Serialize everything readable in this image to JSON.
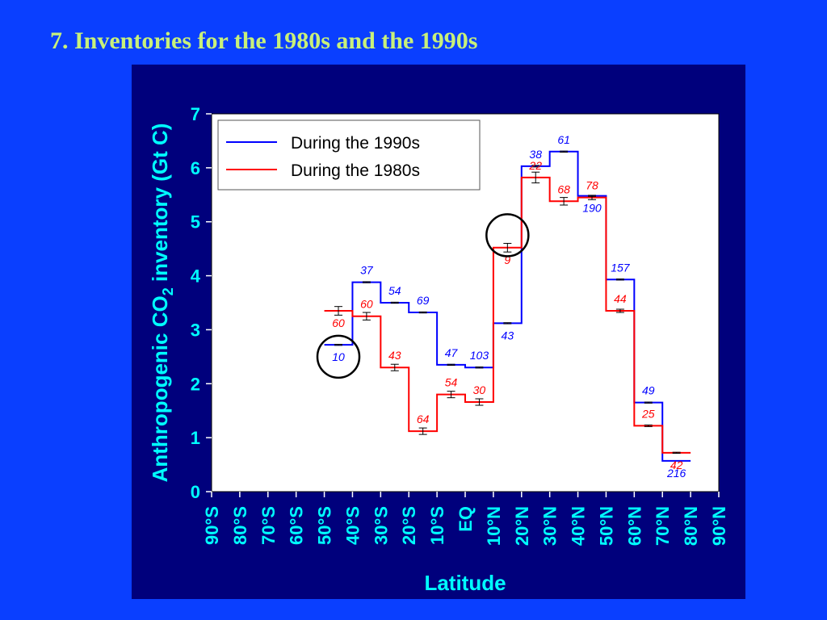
{
  "slide_title": "7. Inventories for the 1980s and the 1990s",
  "colors": {
    "background": "#0a3fff",
    "panel": "#00007c",
    "plot_bg": "#ffffff",
    "axis_text": "#00ffff",
    "title": "#c8f07a",
    "series_1990s": "#0000ff",
    "series_1980s": "#ff0000",
    "highlight_circle": "#000000"
  },
  "chart_data": {
    "type": "line",
    "step": true,
    "title": "",
    "xlabel": "Latitude",
    "ylabel_parts": [
      "Anthropogenic CO",
      "2",
      " inventory (Gt C)"
    ],
    "x_tick_labels": [
      "90°S",
      "80°S",
      "70°S",
      "60°S",
      "50°S",
      "40°S",
      "30°S",
      "20°S",
      "10°S",
      "EQ",
      "10°N",
      "20°N",
      "30°N",
      "40°N",
      "50°N",
      "60°N",
      "70°N",
      "80°N",
      "90°N"
    ],
    "x_range": [
      -90,
      90
    ],
    "ylim": [
      0,
      7
    ],
    "y_ticks": [
      0,
      1,
      2,
      3,
      4,
      5,
      6,
      7
    ],
    "grid": false,
    "legend_position": "top-left",
    "series": [
      {
        "name": "During the 1990s",
        "color": "#0000ff",
        "segments": [
          {
            "x0": -50,
            "x1": -40,
            "y": 2.72,
            "label": "10"
          },
          {
            "x0": -40,
            "x1": -30,
            "y": 3.88,
            "label": "37"
          },
          {
            "x0": -30,
            "x1": -20,
            "y": 3.5,
            "label": "54"
          },
          {
            "x0": -20,
            "x1": -10,
            "y": 3.32,
            "label": "69"
          },
          {
            "x0": -10,
            "x1": 0,
            "y": 2.35,
            "label": "47"
          },
          {
            "x0": 0,
            "x1": 10,
            "y": 2.3,
            "label": "103"
          },
          {
            "x0": 10,
            "x1": 20,
            "y": 3.12,
            "label": "43"
          },
          {
            "x0": 20,
            "x1": 30,
            "y": 6.03,
            "label": "38"
          },
          {
            "x0": 30,
            "x1": 40,
            "y": 6.3,
            "label": "61"
          },
          {
            "x0": 40,
            "x1": 50,
            "y": 5.48,
            "label": "190"
          },
          {
            "x0": 50,
            "x1": 60,
            "y": 3.93,
            "label": "157"
          },
          {
            "x0": 60,
            "x1": 70,
            "y": 1.65,
            "label": "49"
          },
          {
            "x0": 70,
            "x1": 80,
            "y": 0.57,
            "label": "216"
          }
        ]
      },
      {
        "name": "During the 1980s",
        "color": "#ff0000",
        "segments": [
          {
            "x0": -50,
            "x1": -40,
            "y": 3.35,
            "label": "60"
          },
          {
            "x0": -40,
            "x1": -30,
            "y": 3.25,
            "label": "60"
          },
          {
            "x0": -30,
            "x1": -20,
            "y": 2.3,
            "label": "43"
          },
          {
            "x0": -20,
            "x1": -10,
            "y": 1.12,
            "label": "64"
          },
          {
            "x0": -10,
            "x1": 0,
            "y": 1.8,
            "label": "54"
          },
          {
            "x0": 0,
            "x1": 10,
            "y": 1.66,
            "label": "30"
          },
          {
            "x0": 10,
            "x1": 20,
            "y": 4.52,
            "label": "9"
          },
          {
            "x0": 20,
            "x1": 30,
            "y": 5.82,
            "label": "22"
          },
          {
            "x0": 30,
            "x1": 40,
            "y": 5.38,
            "label": "68"
          },
          {
            "x0": 40,
            "x1": 50,
            "y": 5.45,
            "label": "78"
          },
          {
            "x0": 50,
            "x1": 60,
            "y": 3.35,
            "label": "44"
          },
          {
            "x0": 60,
            "x1": 70,
            "y": 1.22,
            "label": "25"
          },
          {
            "x0": 70,
            "x1": 80,
            "y": 0.72,
            "label": "42"
          }
        ]
      }
    ],
    "error_bars": [
      {
        "x": -45,
        "y": 3.35,
        "err": 0.08
      },
      {
        "x": -35,
        "y": 3.25,
        "err": 0.07
      },
      {
        "x": -25,
        "y": 2.3,
        "err": 0.06
      },
      {
        "x": -15,
        "y": 1.12,
        "err": 0.06
      },
      {
        "x": -5,
        "y": 1.8,
        "err": 0.06
      },
      {
        "x": 5,
        "y": 1.66,
        "err": 0.06
      },
      {
        "x": 15,
        "y": 4.52,
        "err": 0.08
      },
      {
        "x": 25,
        "y": 5.82,
        "err": 0.1
      },
      {
        "x": 35,
        "y": 5.38,
        "err": 0.07
      },
      {
        "x": 45,
        "y": 5.45,
        "err": 0.04
      },
      {
        "x": 55,
        "y": 3.35,
        "err": 0.03
      },
      {
        "x": 65,
        "y": 1.22,
        "err": 0.015
      },
      {
        "x": 75,
        "y": 0.72,
        "err": 0.01
      },
      {
        "x": -45,
        "y": 2.72,
        "err": 0.01
      },
      {
        "x": -35,
        "y": 3.88,
        "err": 0.01
      },
      {
        "x": -25,
        "y": 3.5,
        "err": 0.01
      },
      {
        "x": -15,
        "y": 3.32,
        "err": 0.01
      },
      {
        "x": -5,
        "y": 2.35,
        "err": 0.01
      },
      {
        "x": 5,
        "y": 2.3,
        "err": 0.01
      },
      {
        "x": 15,
        "y": 3.12,
        "err": 0.01
      },
      {
        "x": 25,
        "y": 6.03,
        "err": 0.015
      },
      {
        "x": 35,
        "y": 6.3,
        "err": 0.01
      },
      {
        "x": 45,
        "y": 5.48,
        "err": 0.01
      },
      {
        "x": 55,
        "y": 3.93,
        "err": 0.01
      },
      {
        "x": 65,
        "y": 1.65,
        "err": 0.01
      }
    ],
    "highlight_circles": [
      {
        "x": -45,
        "y": 2.5
      },
      {
        "x": 15,
        "y": 4.75
      }
    ]
  }
}
